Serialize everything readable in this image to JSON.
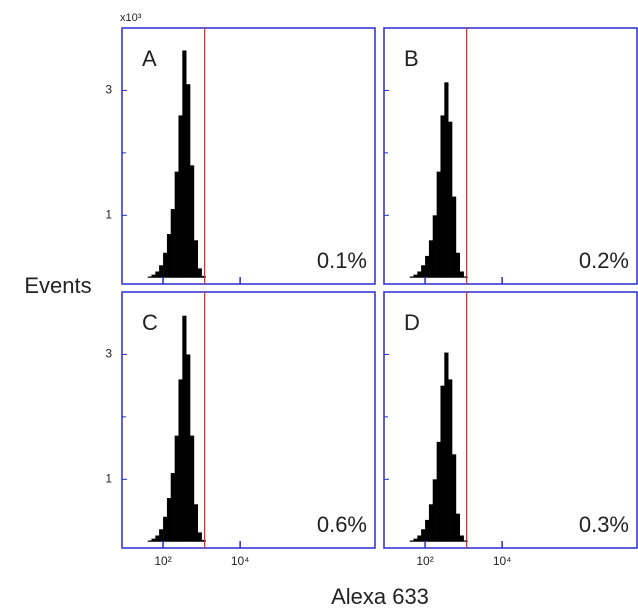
{
  "ylabel": "Events",
  "xlabel": "Alexa 633",
  "chart_data": [
    {
      "type": "histogram",
      "label": "A",
      "ymult_label": "x10³",
      "annotation": "0.1%",
      "gate": 1200,
      "gate_color": "#e8202a",
      "color": "#000000",
      "frame_color": "#2b2bd0",
      "xlog": true,
      "bins": [
        40,
        50,
        63,
        79,
        100,
        126,
        158,
        200,
        251,
        316,
        398,
        501,
        631,
        794,
        1000,
        1259
      ],
      "values": [
        0.02,
        0.05,
        0.1,
        0.2,
        0.4,
        0.7,
        1.1,
        1.7,
        2.6,
        3.64,
        3.1,
        1.8,
        0.6,
        0.15,
        0.03
      ],
      "xlim": [
        8.6,
        31600000
      ],
      "xticks": [
        {
          "value": 100,
          "label": "10²"
        },
        {
          "value": 10000,
          "label": "10⁴"
        }
      ],
      "ylim": [
        -0.1,
        4
      ],
      "yticks": [
        1,
        3
      ],
      "yminor": [
        2
      ]
    },
    {
      "type": "histogram",
      "label": "B",
      "annotation": "0.2%",
      "gate": 1200,
      "gate_color": "#e8202a",
      "color": "#000000",
      "frame_color": "#2b2bd0",
      "xlog": true,
      "bins": [
        40,
        50,
        63,
        79,
        100,
        126,
        158,
        200,
        251,
        316,
        398,
        501,
        631,
        794,
        1000,
        1259
      ],
      "values": [
        0.02,
        0.05,
        0.1,
        0.2,
        0.35,
        0.6,
        1.0,
        1.7,
        2.6,
        3.13,
        2.5,
        1.3,
        0.4,
        0.1,
        0.02
      ],
      "xlim": [
        8.6,
        31600000
      ],
      "xticks": [
        {
          "value": 100,
          "label": "10²"
        },
        {
          "value": 10000,
          "label": "10⁴"
        }
      ],
      "ylim": [
        -0.1,
        4
      ],
      "yticks": [
        1,
        3
      ],
      "yminor": [
        2
      ]
    },
    {
      "type": "histogram",
      "label": "C",
      "annotation": "0.6%",
      "gate": 1200,
      "gate_color": "#e8202a",
      "color": "#000000",
      "frame_color": "#2b2bd0",
      "xlog": true,
      "bins": [
        40,
        50,
        63,
        79,
        100,
        126,
        158,
        200,
        251,
        316,
        398,
        501,
        631,
        794,
        1000,
        1259
      ],
      "values": [
        0.02,
        0.05,
        0.1,
        0.2,
        0.4,
        0.7,
        1.1,
        1.7,
        2.6,
        3.62,
        3.0,
        1.7,
        0.6,
        0.15,
        0.03
      ],
      "xlim": [
        8.6,
        31600000
      ],
      "xticks": [
        {
          "value": 100,
          "label": "10²"
        },
        {
          "value": 10000,
          "label": "10⁴"
        }
      ],
      "ylim": [
        -0.1,
        4
      ],
      "yticks": [
        1,
        3
      ],
      "yminor": [
        2
      ]
    },
    {
      "type": "histogram",
      "label": "D",
      "annotation": "0.3%",
      "gate": 1200,
      "gate_color": "#e8202a",
      "color": "#000000",
      "frame_color": "#2b2bd0",
      "xlog": true,
      "bins": [
        40,
        50,
        63,
        79,
        100,
        126,
        158,
        200,
        251,
        316,
        398,
        501,
        631,
        794,
        1000,
        1259
      ],
      "values": [
        0.02,
        0.05,
        0.1,
        0.2,
        0.35,
        0.6,
        1.0,
        1.6,
        2.5,
        3.03,
        2.6,
        1.4,
        0.45,
        0.1,
        0.02
      ],
      "xlim": [
        8.6,
        31600000
      ],
      "xticks": [
        {
          "value": 100,
          "label": "10²"
        },
        {
          "value": 10000,
          "label": "10⁴"
        }
      ],
      "ylim": [
        -0.1,
        4
      ],
      "yticks": [
        1,
        3
      ],
      "yminor": [
        2
      ]
    }
  ]
}
